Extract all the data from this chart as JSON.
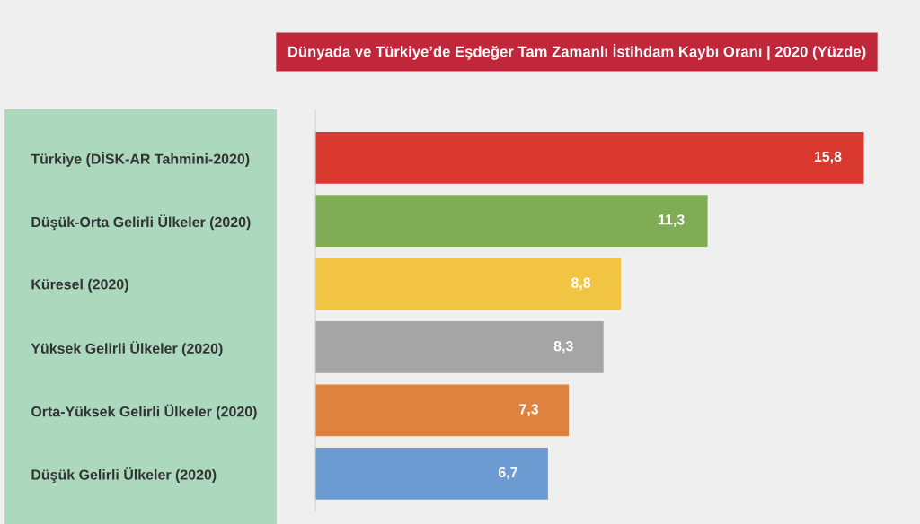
{
  "chart_data": {
    "type": "bar",
    "orientation": "horizontal",
    "title": "Dünyada ve Türkiye’de Eşdeğer Tam Zamanlı İstihdam Kaybı Oranı | 2020 (Yüzde)",
    "categories": [
      "Türkiye (DİSK-AR Tahmini-2020)",
      "Düşük-Orta Gelirli Ülkeler (2020)",
      "Küresel (2020)",
      "Yüksek Gelirli Ülkeler (2020)",
      "Orta-Yüksek Gelirli Ülkeler (2020)",
      "Düşük Gelirli Ülkeler (2020)"
    ],
    "values": [
      15.8,
      11.3,
      8.8,
      8.3,
      7.3,
      6.7
    ],
    "value_labels": [
      "15,8",
      "11,3",
      "8,8",
      "8,3",
      "7,3",
      "6,7"
    ],
    "colors": [
      "#d9382f",
      "#7fac55",
      "#f2c443",
      "#a5a5a5",
      "#e0823f",
      "#6b9bd1"
    ],
    "grid": false,
    "legend": false
  }
}
